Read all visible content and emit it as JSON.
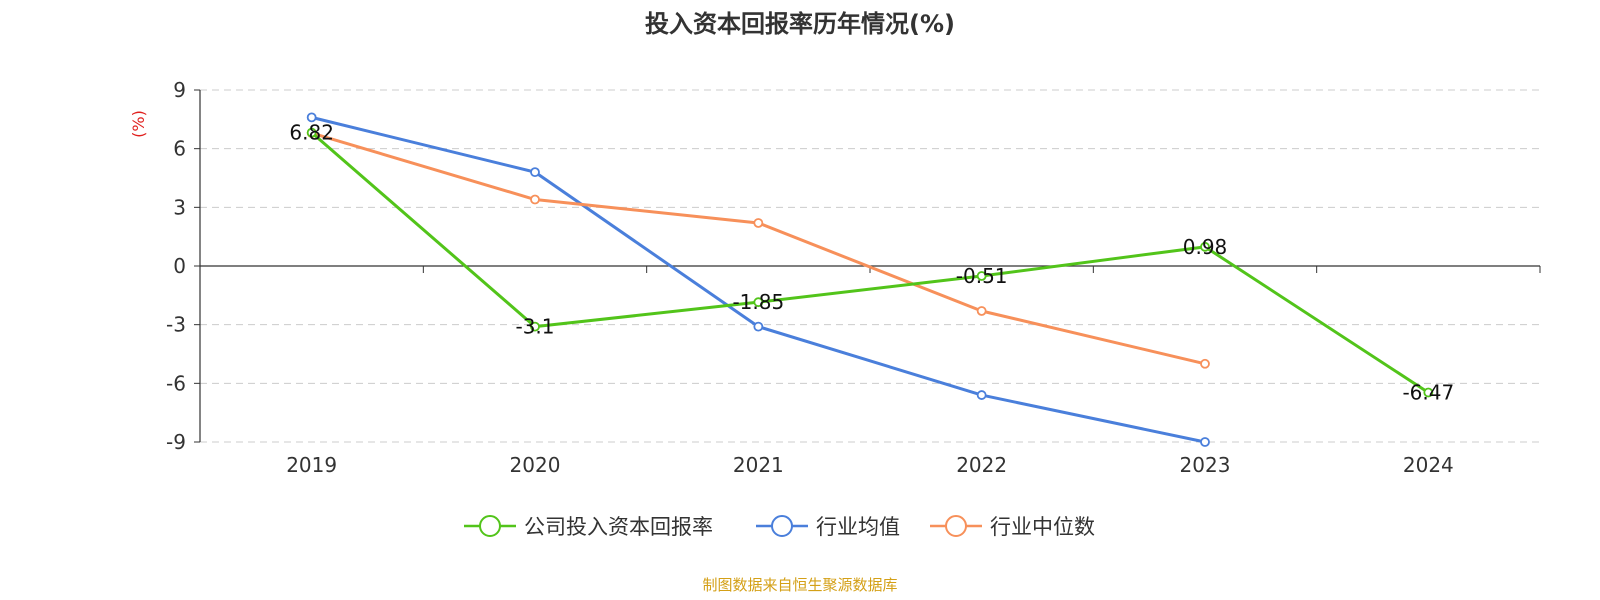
{
  "chart_data": {
    "type": "line",
    "title": "投入资本回报率历年情况(%)",
    "ylabel": "(%)",
    "categories": [
      "2019",
      "2020",
      "2021",
      "2022",
      "2023",
      "2024"
    ],
    "ylim": [
      -9,
      9
    ],
    "yticks": [
      9,
      6,
      3,
      0,
      -3,
      -6,
      -9
    ],
    "grid": true,
    "legend_position": "bottom",
    "series": [
      {
        "name": "公司投入资本回报率",
        "color": "#52c41a",
        "values": [
          6.82,
          -3.1,
          -1.85,
          -0.51,
          0.98,
          -6.47
        ],
        "labels": [
          "6.82",
          "-3.1",
          "-1.85",
          "-0.51",
          "0.98",
          "-6.47"
        ]
      },
      {
        "name": "行业均值",
        "color": "#4a7fdb",
        "values": [
          7.6,
          4.8,
          -3.1,
          -6.6,
          -9.0,
          null
        ]
      },
      {
        "name": "行业中位数",
        "color": "#f7905a",
        "values": [
          6.8,
          3.4,
          2.2,
          -2.3,
          -5.0,
          null
        ]
      }
    ]
  },
  "source": "制图数据来自恒生聚源数据库",
  "colors": {
    "unit": "#e0201e",
    "source": "#d4a017",
    "axis": "#333333",
    "grid": "#cccccc"
  }
}
